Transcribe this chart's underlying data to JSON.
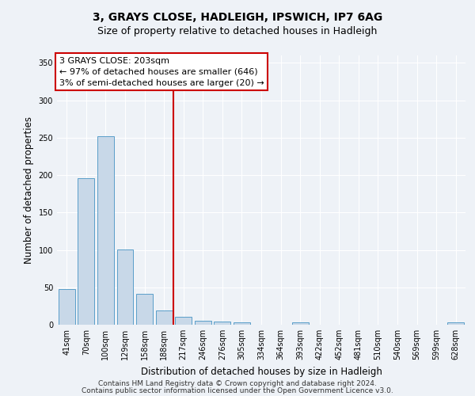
{
  "title1": "3, GRAYS CLOSE, HADLEIGH, IPSWICH, IP7 6AG",
  "title2": "Size of property relative to detached houses in Hadleigh",
  "xlabel": "Distribution of detached houses by size in Hadleigh",
  "ylabel": "Number of detached properties",
  "categories": [
    "41sqm",
    "70sqm",
    "100sqm",
    "129sqm",
    "158sqm",
    "188sqm",
    "217sqm",
    "246sqm",
    "276sqm",
    "305sqm",
    "334sqm",
    "364sqm",
    "393sqm",
    "422sqm",
    "452sqm",
    "481sqm",
    "510sqm",
    "540sqm",
    "569sqm",
    "599sqm",
    "628sqm"
  ],
  "values": [
    48,
    196,
    252,
    101,
    41,
    19,
    11,
    5,
    4,
    3,
    0,
    0,
    3,
    0,
    0,
    0,
    0,
    0,
    0,
    0,
    3
  ],
  "bar_color": "#c8d8e8",
  "bar_edge_color": "#5a9ec9",
  "vline_color": "#cc0000",
  "annotation_text": "3 GRAYS CLOSE: 203sqm\n← 97% of detached houses are smaller (646)\n3% of semi-detached houses are larger (20) →",
  "annotation_box_color": "#ffffff",
  "annotation_box_edge": "#cc0000",
  "footer1": "Contains HM Land Registry data © Crown copyright and database right 2024.",
  "footer2": "Contains public sector information licensed under the Open Government Licence v3.0.",
  "ylim": [
    0,
    360
  ],
  "yticks": [
    0,
    50,
    100,
    150,
    200,
    250,
    300,
    350
  ],
  "bg_color": "#eef2f7",
  "plot_bg_color": "#eef2f7",
  "grid_color": "#ffffff",
  "title1_fontsize": 10,
  "title2_fontsize": 9,
  "xlabel_fontsize": 8.5,
  "ylabel_fontsize": 8.5,
  "tick_fontsize": 7,
  "annotation_fontsize": 8,
  "footer_fontsize": 6.5
}
